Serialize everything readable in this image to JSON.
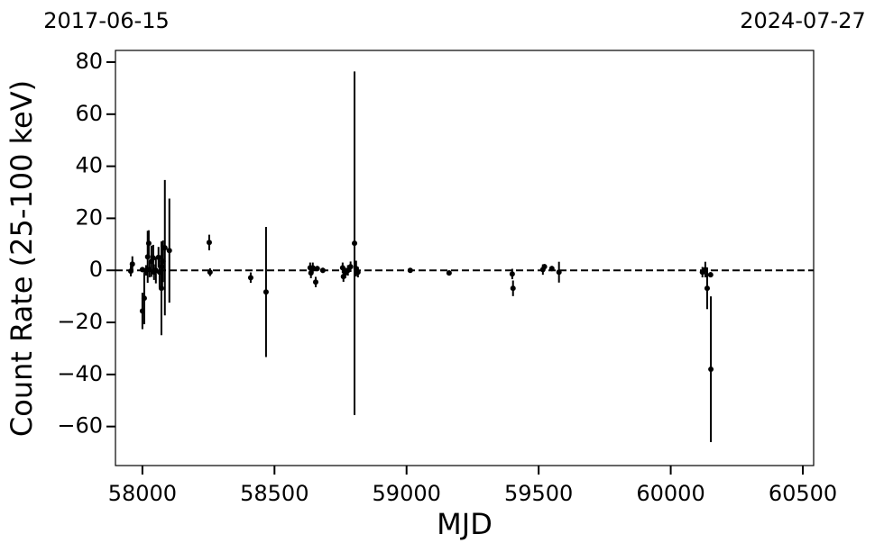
{
  "chart_data": {
    "type": "scatter",
    "annotations": [
      "2017-06-15",
      "2024-07-27"
    ],
    "xlabel": "MJD",
    "ylabel": "Count Rate (25-100 keV)",
    "xlim": [
      57898,
      60541
    ],
    "ylim": [
      -75,
      84.5
    ],
    "xticks": [
      58000,
      58500,
      59000,
      59500,
      60000,
      60500
    ],
    "yticks": [
      {
        "value": -60,
        "label": "−60"
      },
      {
        "value": -40,
        "label": "−40"
      },
      {
        "value": -20,
        "label": "−20"
      },
      0,
      20,
      40,
      60,
      80
    ],
    "reference_line": 0,
    "color": "#000000",
    "x": [
      57956,
      57962,
      58000,
      58000,
      58007,
      58014,
      58020,
      58024,
      58027,
      58034,
      58041,
      58044,
      58051,
      58061,
      58065,
      58072,
      58075,
      58078,
      58085,
      58102,
      58253,
      58256,
      58410,
      58468,
      58635,
      58638,
      58645,
      58656,
      58662,
      58683,
      58758,
      58761,
      58768,
      58778,
      58788,
      58803,
      58809,
      58816,
      59014,
      59161,
      59400,
      59403,
      59516,
      59522,
      59550,
      59577,
      60120,
      60131,
      60138,
      60152,
      60151
    ],
    "values": [
      -0.3,
      2.4,
      0.3,
      -15.6,
      -10.7,
      0,
      5.2,
      10.4,
      0.3,
      3.5,
      4.8,
      -0.7,
      0,
      5,
      -0.7,
      -6.9,
      1.4,
      3.5,
      8.7,
      7.6,
      10.7,
      -0.7,
      -2.8,
      -8.3,
      1,
      -1,
      1,
      -4.5,
      0.7,
      0,
      1,
      -2.4,
      -1,
      0,
      1.4,
      10.4,
      0.7,
      -0.7,
      0,
      -1,
      -1.4,
      -6.9,
      0.3,
      1.4,
      0.7,
      -0.7,
      -0.7,
      0.3,
      -6.9,
      -38,
      -1.7
    ],
    "errors": [
      2,
      3,
      1,
      7,
      10,
      2,
      10,
      5,
      3,
      6,
      5,
      3,
      5,
      4,
      6,
      18,
      9,
      8,
      26,
      20,
      3,
      1.5,
      2,
      25,
      2,
      2,
      2,
      2,
      1,
      1,
      2,
      2,
      2,
      2,
      2,
      66,
      3,
      2,
      0.5,
      1,
      2,
      3,
      2,
      1,
      1,
      4,
      2,
      3,
      8,
      28,
      1
    ]
  }
}
